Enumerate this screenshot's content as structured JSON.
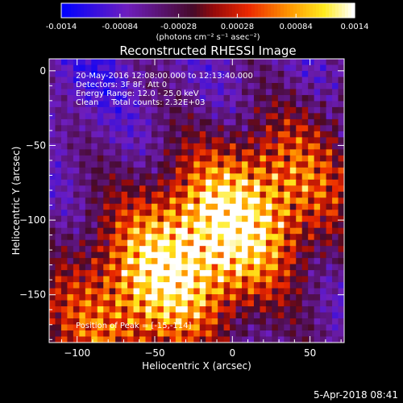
{
  "chart_data": {
    "type": "heatmap",
    "title": "Reconstructed RHESSI Image",
    "xlabel": "Heliocentric X (arcsec)",
    "ylabel": "Heliocentric Y (arcsec)",
    "xlim": [
      -118,
      72
    ],
    "ylim": [
      -182,
      8
    ],
    "xticks": [
      -100,
      -50,
      0,
      50
    ],
    "yticks": [
      0,
      -50,
      -100,
      -150
    ],
    "colorbar": {
      "min": -0.0014,
      "max": 0.0014,
      "ticks": [
        "-0.0014",
        "-0.00084",
        "-0.00028",
        "0.00028",
        "0.00084",
        "0.0014"
      ],
      "unit_label": "(photons cm⁻² s⁻¹ asec⁻²)"
    },
    "annotations": {
      "line1": "20-May-2016 12:08:00.000 to 12:13:40.000",
      "line2": "Detectors: 3F 8F, Att 0",
      "line3": "Energy Range: 12.0 - 25.0 keV",
      "line4": "Clean     Total counts: 2.32E+03",
      "peak": "Position of Peak = [-15,-114]"
    },
    "peak_position": [
      -15,
      -114
    ],
    "source_orientation_deg": 40,
    "colormap": "blue-purple-red-yellow-white",
    "timestamp": "5-Apr-2018 08:41"
  }
}
